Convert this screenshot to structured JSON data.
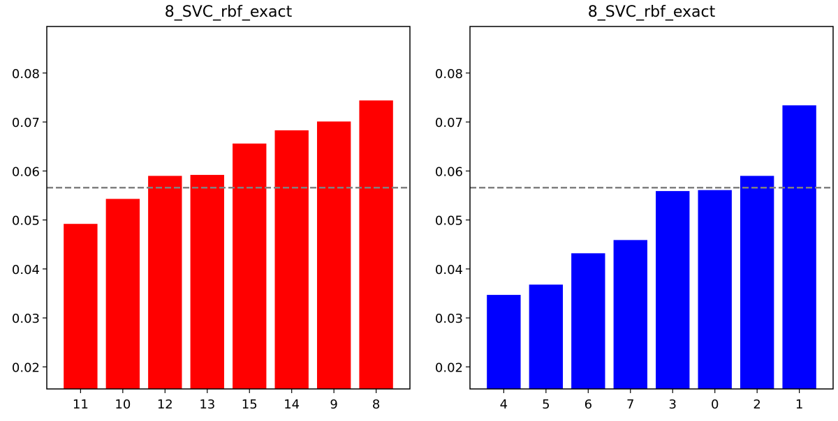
{
  "chart_data": [
    {
      "type": "bar",
      "title": "8_SVC_rbf_exact",
      "xlabel": "",
      "ylabel": "",
      "categories": [
        "11",
        "10",
        "12",
        "13",
        "15",
        "14",
        "9",
        "8"
      ],
      "values": [
        0.0492,
        0.0543,
        0.059,
        0.0592,
        0.0656,
        0.0683,
        0.0701,
        0.0744
      ],
      "ylim": [
        0.0155,
        0.0895
      ],
      "yticks": [
        "0.02",
        "0.03",
        "0.04",
        "0.05",
        "0.06",
        "0.07",
        "0.08"
      ],
      "bar_color": "#ff0000",
      "reference_line": {
        "value": 0.0566,
        "color": "#808080",
        "style": "dashed"
      },
      "grid": false
    },
    {
      "type": "bar",
      "title": "8_SVC_rbf_exact",
      "xlabel": "",
      "ylabel": "",
      "categories": [
        "4",
        "5",
        "6",
        "7",
        "3",
        "0",
        "2",
        "1"
      ],
      "values": [
        0.0347,
        0.0368,
        0.0432,
        0.0459,
        0.0559,
        0.0561,
        0.059,
        0.0734
      ],
      "ylim": [
        0.0155,
        0.0895
      ],
      "yticks": [
        "0.02",
        "0.03",
        "0.04",
        "0.05",
        "0.06",
        "0.07",
        "0.08"
      ],
      "bar_color": "#0000ff",
      "reference_line": {
        "value": 0.0566,
        "color": "#808080",
        "style": "dashed"
      },
      "grid": false
    }
  ]
}
